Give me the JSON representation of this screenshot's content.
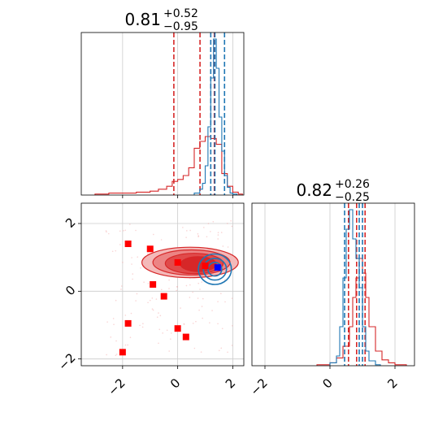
{
  "chart_data": [
    {
      "panel": "marginal-top",
      "type": "histogram",
      "title": {
        "value": "0.81",
        "plus": "+0.52",
        "minus": "−0.95"
      },
      "xlim": [
        -3.5,
        2.4
      ],
      "grid": true,
      "series": [
        {
          "color": "#d62728",
          "bins": [
            -3.0,
            -2.5,
            -2.0,
            -1.5,
            -1.0,
            -0.7,
            -0.4,
            -0.2,
            0.0,
            0.2,
            0.4,
            0.6,
            0.8,
            1.0,
            1.2,
            1.4,
            1.6,
            1.8,
            2.0,
            2.2
          ],
          "counts": [
            1,
            2,
            2,
            3,
            4,
            6,
            9,
            14,
            16,
            20,
            28,
            48,
            55,
            60,
            58,
            52,
            22,
            9,
            3,
            1
          ],
          "quantiles": [
            -0.14,
            0.81,
            1.33
          ]
        },
        {
          "color": "#1f77b4",
          "bins": [
            0.6,
            0.8,
            0.9,
            1.0,
            1.1,
            1.2,
            1.3,
            1.4,
            1.5,
            1.6,
            1.7,
            1.8,
            1.9,
            2.0
          ],
          "counts": [
            2,
            6,
            12,
            30,
            70,
            120,
            160,
            130,
            80,
            45,
            20,
            8,
            2,
            1
          ],
          "quantiles": [
            1.2,
            1.35,
            1.7
          ]
        }
      ]
    },
    {
      "panel": "marginal-right",
      "type": "histogram",
      "title": {
        "value": "0.82",
        "plus": "+0.26",
        "minus": "−0.25"
      },
      "xlim": [
        -2.4,
        2.6
      ],
      "x_ticks": [
        "−2",
        "0",
        "2"
      ],
      "grid": true,
      "series": [
        {
          "color": "#d62728",
          "bins": [
            -0.4,
            0.0,
            0.2,
            0.4,
            0.6,
            0.7,
            0.8,
            0.9,
            1.0,
            1.1,
            1.2,
            1.4,
            1.6,
            1.8,
            2.0,
            2.2
          ],
          "counts": [
            1,
            3,
            8,
            20,
            40,
            70,
            90,
            110,
            95,
            70,
            40,
            15,
            6,
            3,
            1,
            1
          ],
          "quantiles": [
            0.57,
            0.82,
            1.08
          ]
        },
        {
          "color": "#1f77b4",
          "bins": [
            0.0,
            0.2,
            0.3,
            0.4,
            0.5,
            0.6,
            0.7,
            0.8,
            0.9,
            1.0,
            1.1,
            1.2,
            1.4
          ],
          "counts": [
            3,
            10,
            40,
            90,
            140,
            160,
            130,
            110,
            80,
            40,
            15,
            5,
            1
          ],
          "quantiles": [
            0.45,
            0.9,
            1.0
          ]
        }
      ]
    },
    {
      "panel": "joint",
      "type": "scatter",
      "xlim": [
        -3.5,
        2.4
      ],
      "ylim": [
        -2.2,
        2.6
      ],
      "x_ticks": [
        "−2",
        "0",
        "2"
      ],
      "y_ticks": [
        "−2",
        "0",
        "2"
      ],
      "grid": true,
      "red_squares": [
        [
          -1.8,
          1.4
        ],
        [
          -1.0,
          1.25
        ],
        [
          -0.9,
          0.2
        ],
        [
          -0.5,
          -0.15
        ],
        [
          0.0,
          0.85
        ],
        [
          1.0,
          0.75
        ],
        [
          -1.8,
          -0.95
        ],
        [
          0.0,
          -1.1
        ],
        [
          0.3,
          -1.35
        ],
        [
          -2.0,
          -1.8
        ]
      ],
      "blue_square": [
        1.45,
        0.7
      ],
      "red_contours": [
        {
          "cx": 0.45,
          "cy": 0.85,
          "rx": 1.75,
          "ry": 0.45,
          "fill": "#f4b9b9"
        },
        {
          "cx": 0.5,
          "cy": 0.85,
          "rx": 1.4,
          "ry": 0.37,
          "fill": "#ec8484"
        },
        {
          "cx": 0.6,
          "cy": 0.82,
          "rx": 1.05,
          "ry": 0.3,
          "fill": "#e04a4a"
        },
        {
          "cx": 0.75,
          "cy": 0.8,
          "rx": 0.65,
          "ry": 0.22,
          "fill": "#d62728"
        }
      ],
      "blue_contours": [
        {
          "cx": 1.35,
          "cy": 0.65,
          "rx": 0.6,
          "ry": 0.45
        },
        {
          "cx": 1.35,
          "cy": 0.65,
          "rx": 0.42,
          "ry": 0.32
        },
        {
          "cx": 1.35,
          "cy": 0.65,
          "rx": 0.25,
          "ry": 0.2
        }
      ],
      "colors": {
        "red": "#d62728",
        "blue": "#1f77b4",
        "grid": "#cccccc"
      }
    }
  ]
}
